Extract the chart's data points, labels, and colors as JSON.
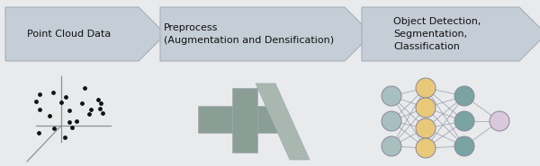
{
  "background_color": "#e8eaec",
  "box1_text": "Point Cloud Data",
  "box2_text": "Preprocess\n(Augmentation and Densification)",
  "box3_text": "Object Detection,\nSegmentation,\nClassification",
  "arrow_fill": "#c5cdd6",
  "arrow_edge": "#9faab3",
  "font_size": 8.0,
  "yellow_color": "#e8c97a",
  "gray_node_color": "#7aa3a3",
  "gray_node_light": "#a8bfbf",
  "output_node_color": "#dac8dc",
  "neural_line_color": "#9090a0",
  "preprocess_dark": "#8a9e96",
  "preprocess_light": "#a8b8b0",
  "point_axes_color": "#909090",
  "scatter_color": "#111111"
}
